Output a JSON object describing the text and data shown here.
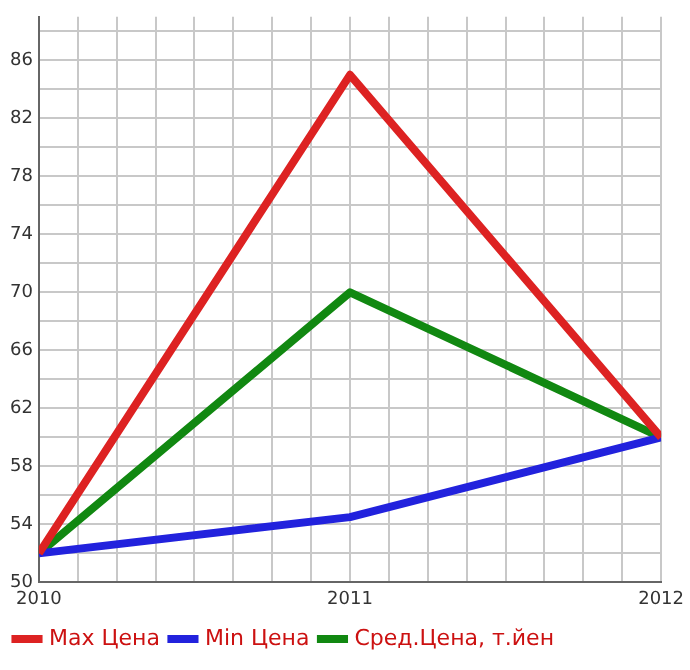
{
  "chart_data": {
    "type": "line",
    "x": [
      2010,
      2011,
      2012
    ],
    "series": [
      {
        "name": "Max Цена",
        "color": "#dd2222",
        "values": [
          52,
          85,
          60
        ]
      },
      {
        "name": "Min Цена",
        "color": "#2222dd",
        "values": [
          52,
          54.5,
          60
        ]
      },
      {
        "name": "Сред.Цена, т.йен",
        "color": "#118811",
        "values": [
          52,
          70,
          60
        ]
      }
    ],
    "xlim": [
      2010,
      2012
    ],
    "xticks": [
      2010,
      {
        "value": 2010.125,
        "label": null
      },
      {
        "value": 2010.25,
        "label": null
      },
      {
        "value": 2010.375,
        "label": null
      },
      {
        "value": 2010.5,
        "label": null
      },
      {
        "value": 2010.625,
        "label": null
      },
      {
        "value": 2010.75,
        "label": null
      },
      {
        "value": 2010.875,
        "label": null
      },
      2011,
      {
        "value": 2011.125,
        "label": null
      },
      {
        "value": 2011.25,
        "label": null
      },
      {
        "value": 2011.375,
        "label": null
      },
      {
        "value": 2011.5,
        "label": null
      },
      {
        "value": 2011.625,
        "label": null
      },
      {
        "value": 2011.75,
        "label": null
      },
      {
        "value": 2011.875,
        "label": null
      },
      2012
    ],
    "ylim": [
      50,
      89
    ],
    "yticks": [
      50,
      {
        "value": 52,
        "label": null
      },
      54,
      {
        "value": 56,
        "label": null
      },
      58,
      {
        "value": 60,
        "label": null
      },
      62,
      {
        "value": 64,
        "label": null
      },
      66,
      {
        "value": 68,
        "label": null
      },
      70,
      {
        "value": 72,
        "label": null
      },
      74,
      {
        "value": 76,
        "label": null
      },
      78,
      {
        "value": 80,
        "label": null
      },
      82,
      {
        "value": 84,
        "label": null
      },
      86,
      {
        "value": 88,
        "label": null
      }
    ],
    "grid": true,
    "legend": "bottom",
    "marker": "none",
    "line_style": "solid"
  }
}
